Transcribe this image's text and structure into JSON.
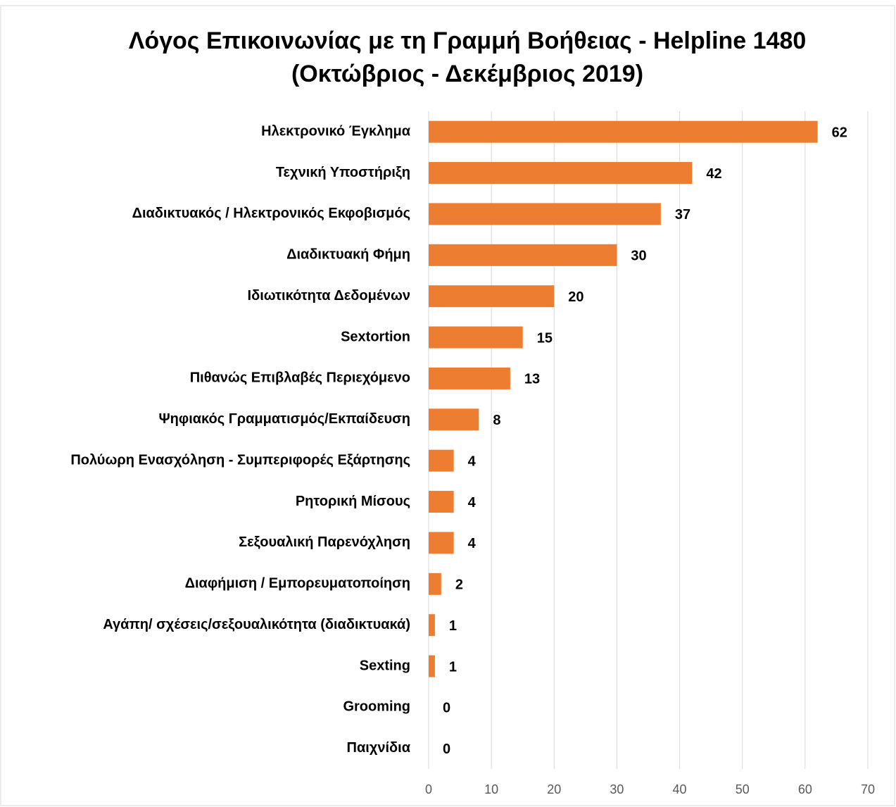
{
  "chart_data": {
    "type": "barh",
    "title": "Λόγος Επικοινωνίας με τη Γραμμή Βοήθειας - Helpline 1480",
    "subtitle": "(Οκτώβριος - Δεκέμβριος 2019)",
    "categories": [
      "Ηλεκτρονικό Έγκλημα",
      "Τεχνική Υποστήριξη",
      "Διαδικτυακός / Ηλεκτρονικός Εκφοβισμός",
      "Διαδικτυακή Φήμη",
      "Ιδιωτικότητα Δεδομένων",
      "Sextortion",
      "Πιθανώς Επιβλαβές Περιεχόμενο",
      "Ψηφιακός Γραμματισμός/Εκπαίδευση",
      "Πολύωρη Ενασχόληση - Συμπεριφορές Εξάρτησης",
      "Ρητορική Μίσους",
      "Σεξουαλική Παρενόχληση",
      "Διαφήμιση / Εμπορευματοποίηση",
      "Αγάπη/ σχέσεις/σεξουαλικότητα (διαδικτυακά)",
      "Sexting",
      "Grooming",
      "Παιχνίδια"
    ],
    "values": [
      62,
      42,
      37,
      30,
      20,
      15,
      13,
      8,
      4,
      4,
      4,
      2,
      1,
      1,
      0,
      0
    ],
    "color": "#ed7d31",
    "xlim": [
      0,
      70
    ],
    "xticks": [
      0,
      10,
      20,
      30,
      40,
      50,
      60,
      70
    ],
    "grid": true
  }
}
